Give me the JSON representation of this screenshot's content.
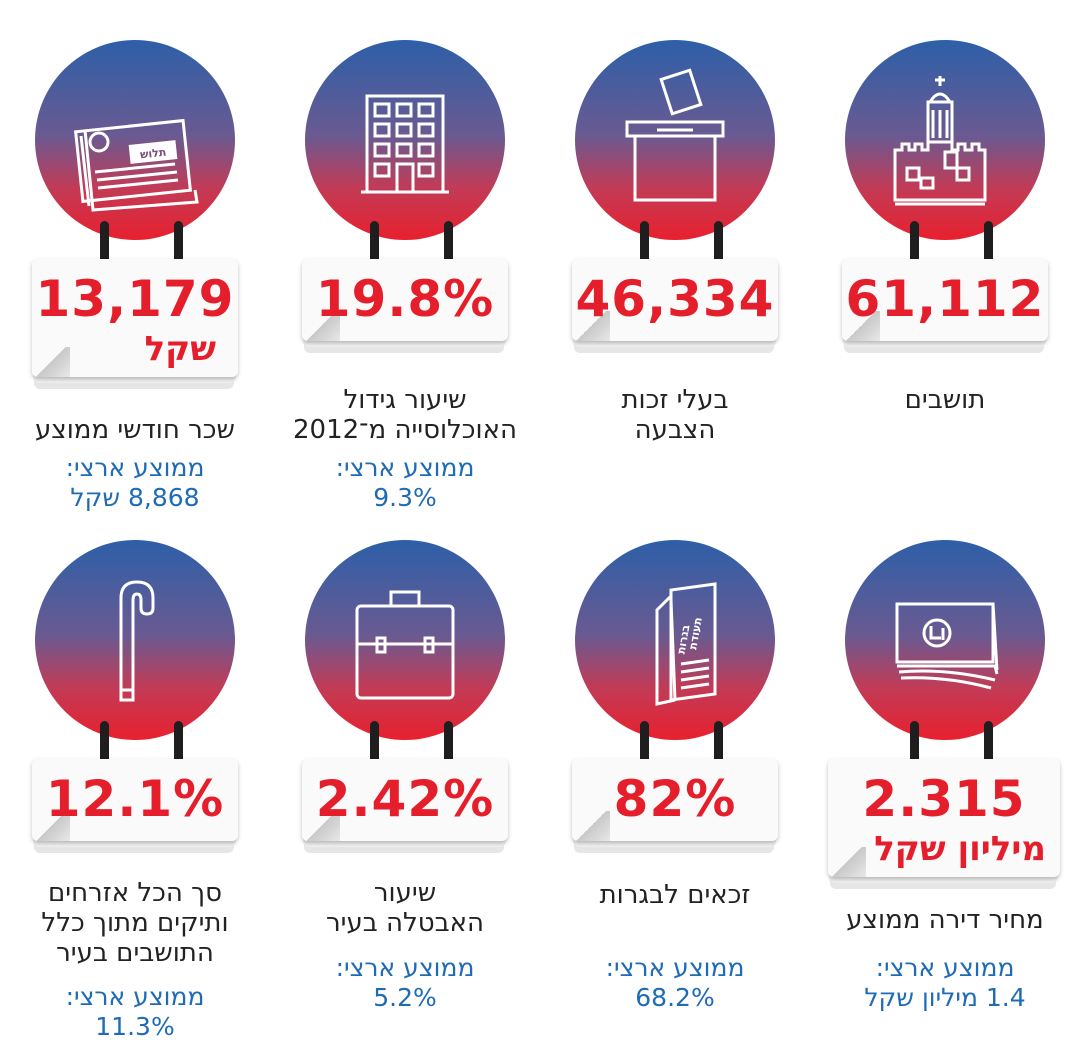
{
  "colors": {
    "red": "#e41f2b",
    "blue": "#1f6bb5",
    "circle_top": "#2d5fa8",
    "circle_bottom": "#e8202e"
  },
  "stats": [
    {
      "icon": "city-wall-icon",
      "value": "61,112",
      "unit": "",
      "label": [
        "תושבים"
      ],
      "national": []
    },
    {
      "icon": "ballot-box-icon",
      "value": "46,334",
      "unit": "",
      "label": [
        "בעלי זכות",
        "הצבעה"
      ],
      "national": []
    },
    {
      "icon": "building-icon",
      "value": "19.8%",
      "unit": "",
      "label": [
        "שיעור גידול",
        "האוכלוסייה מ־2012"
      ],
      "national": [
        "ממוצע ארצי:",
        "9.3%"
      ]
    },
    {
      "icon": "pay-slip-icon",
      "value": "13,179",
      "unit": "שקל",
      "label": [
        "שכר חודשי ממוצע"
      ],
      "national": [
        "ממוצע ארצי:",
        "8,868 שקל"
      ]
    },
    {
      "icon": "banknotes-icon",
      "value": "2.315",
      "unit": "מיליון שקל",
      "label": [
        "מחיר דירה ממוצע"
      ],
      "national": [
        "ממוצע ארצי:",
        "1.4 מיליון שקל"
      ]
    },
    {
      "icon": "matriculation-certificate-icon",
      "value": "82%",
      "unit": "",
      "label": [
        "זכאים לבגרות"
      ],
      "national": [
        "ממוצע ארצי:",
        "68.2%"
      ]
    },
    {
      "icon": "briefcase-icon",
      "value": "2.42%",
      "unit": "",
      "label": [
        "שיעור",
        "האבטלה בעיר"
      ],
      "national": [
        "ממוצע ארצי:",
        "5.2%"
      ]
    },
    {
      "icon": "cane-icon",
      "value": "12.1%",
      "unit": "",
      "label": [
        "סך הכל אזרחים",
        "ותיקים מתוך כלל",
        "התושבים בעיר"
      ],
      "national": [
        "ממוצע ארצי:",
        "11.3%"
      ]
    }
  ],
  "icon_text": {
    "pay_slip": "תלוש",
    "certificate": [
      "תעודת",
      "בגרות"
    ]
  }
}
